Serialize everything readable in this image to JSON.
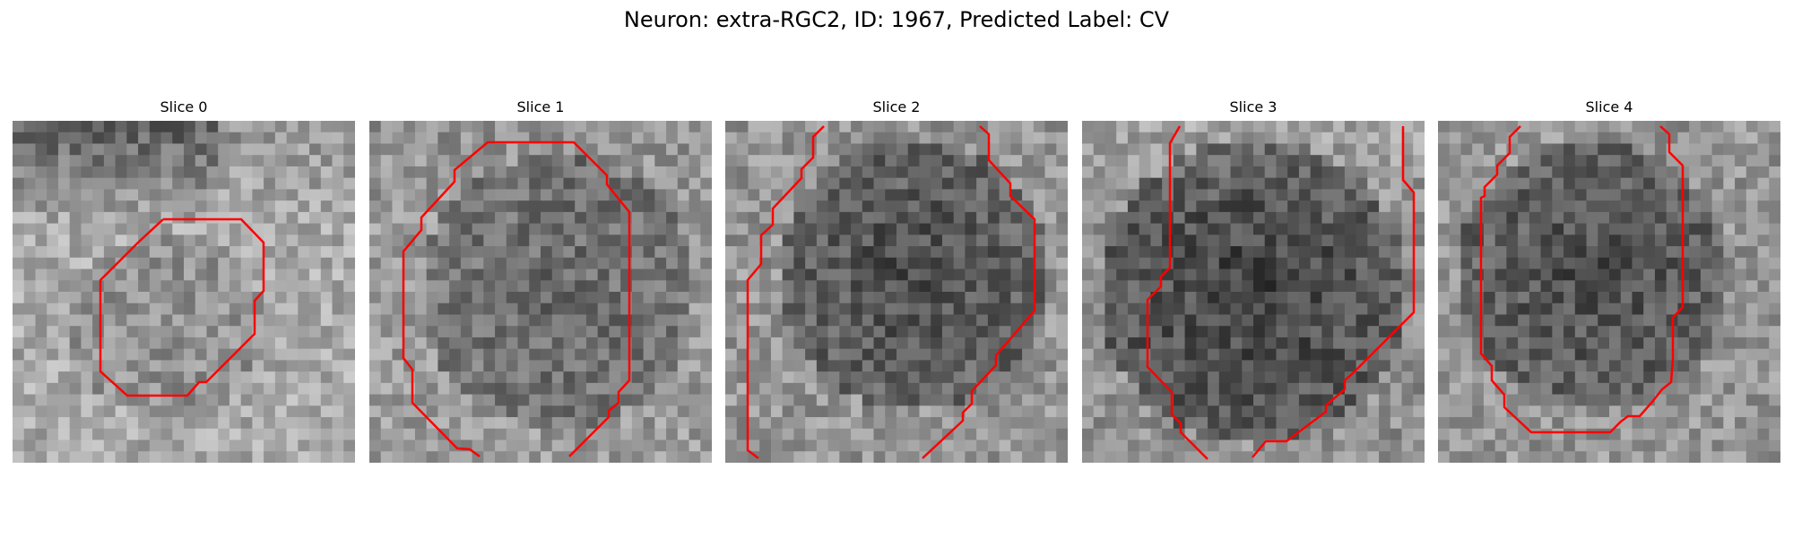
{
  "figure": {
    "title": "Neuron: extra-RGC2, ID: 1967, Predicted Label: CV"
  },
  "overlay_color": "#ff0000",
  "panels": [
    {
      "title": "Slice 0"
    },
    {
      "title": "Slice 1"
    },
    {
      "title": "Slice 2"
    },
    {
      "title": "Slice 3"
    },
    {
      "title": "Slice 4"
    }
  ]
}
